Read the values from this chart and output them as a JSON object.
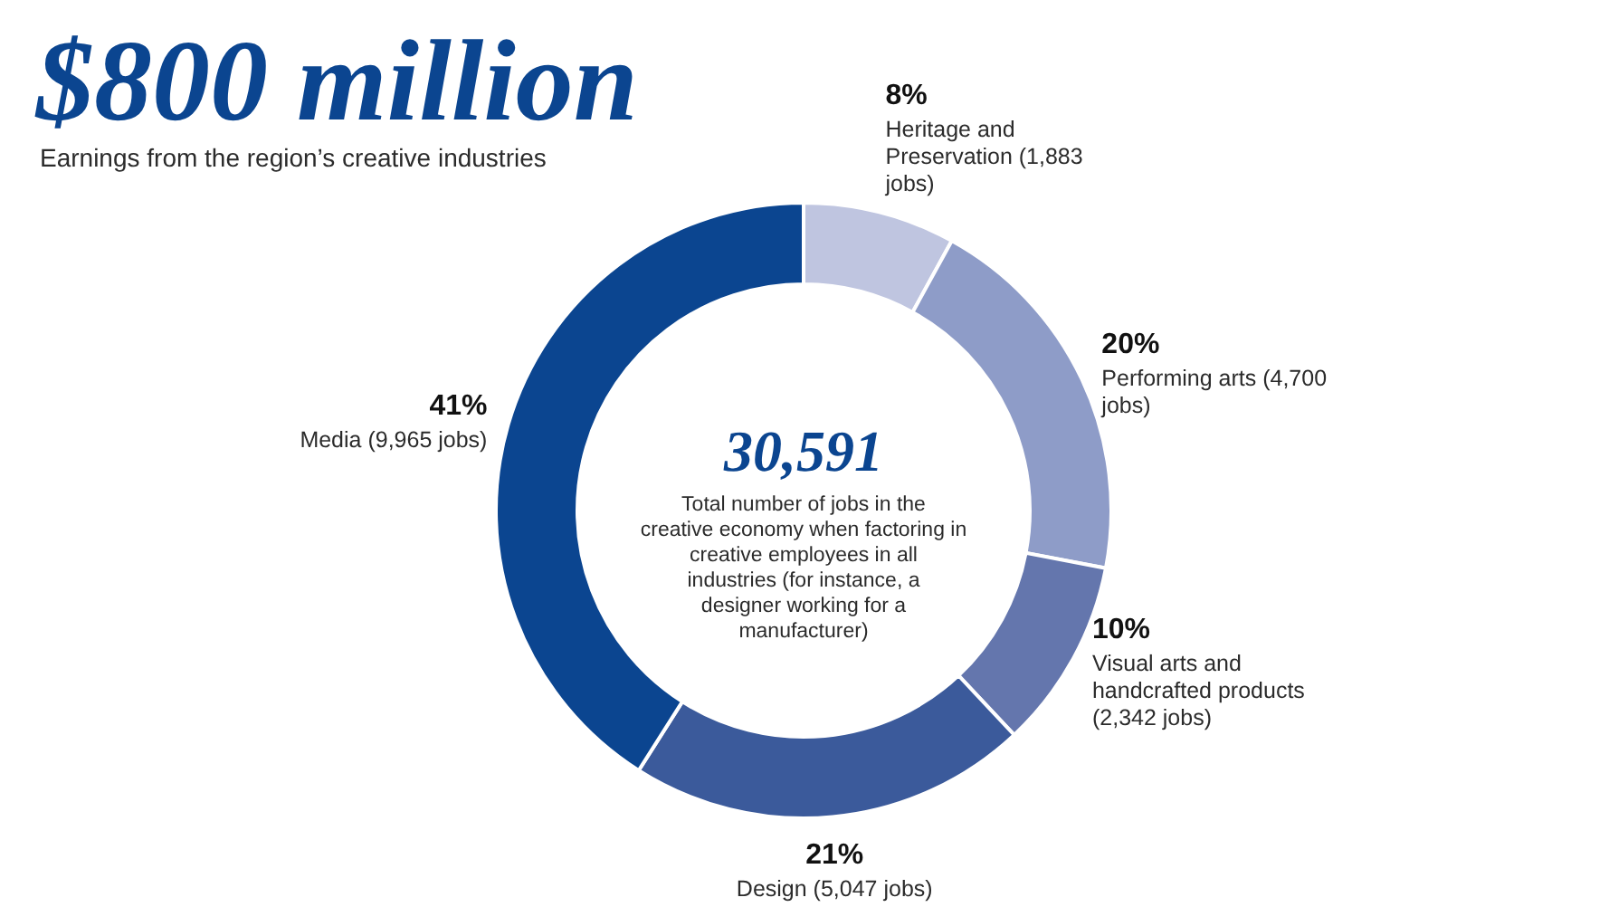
{
  "chart_data": {
    "type": "donut",
    "title": "$800 million",
    "subtitle": "Earnings from the region’s creative industries",
    "categories": [
      "Heritage and Preservation (1,883 jobs)",
      "Performing arts (4,700 jobs)",
      "Visual arts and handcrafted products (2,342 jobs)",
      "Design (5,047 jobs)",
      "Media (9,965 jobs)"
    ],
    "values": [
      8,
      20,
      10,
      21,
      41
    ],
    "colors": [
      "#bfc5e0",
      "#8e9cc8",
      "#6476ad",
      "#3b5a9b",
      "#0b4590"
    ],
    "value_labels": [
      "8%",
      "20%",
      "10%",
      "21%",
      "41%"
    ],
    "annotations": [
      "30,591",
      "Total number of jobs in the creative economy when factoring in creative employees in all industries (for instance, a designer working for a manufacturer)"
    ]
  }
}
